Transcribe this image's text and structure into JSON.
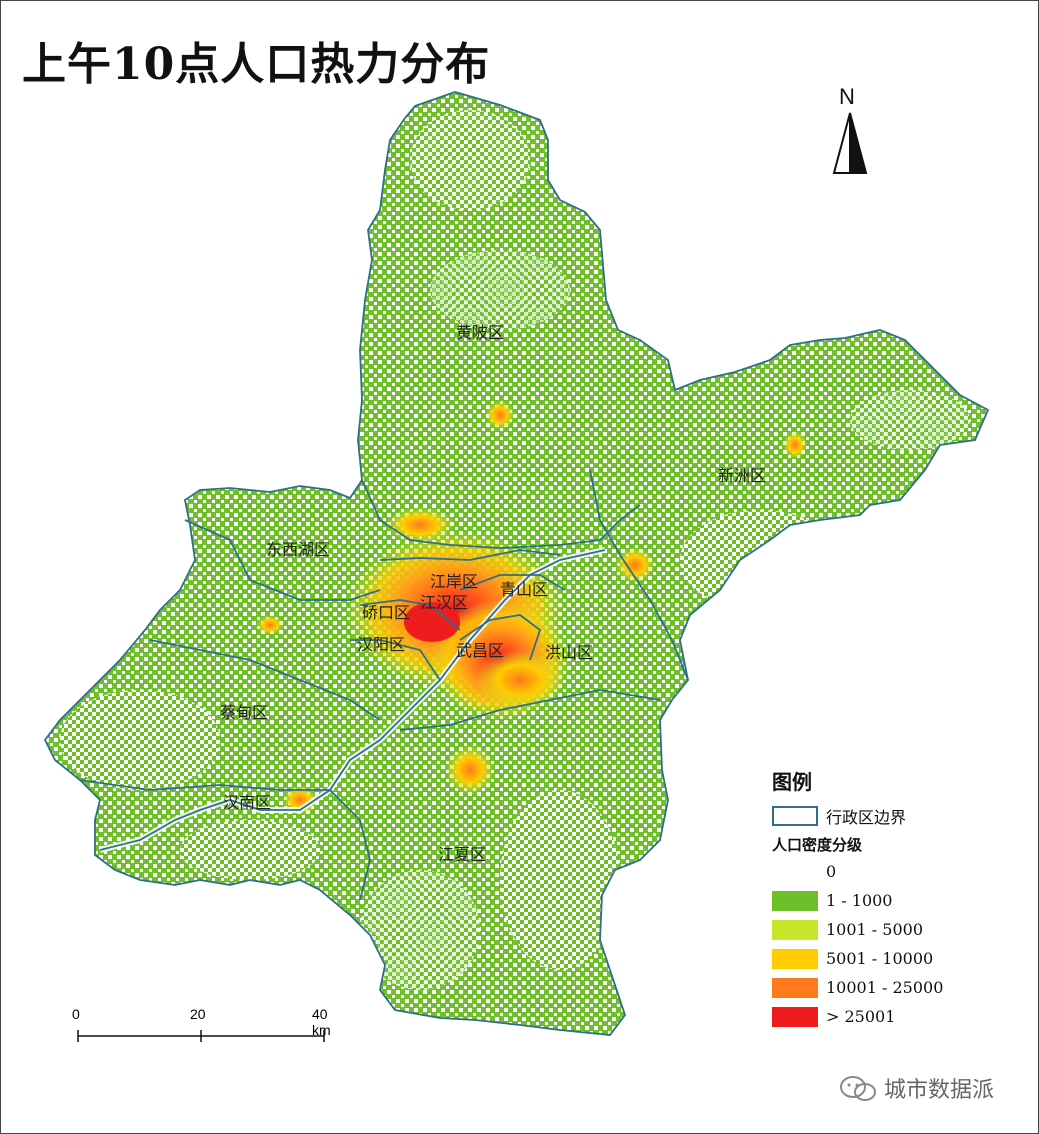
{
  "title": "上午10点人口热力分布",
  "north_label": "N",
  "districts": [
    {
      "name": "黄陂区"
    },
    {
      "name": "新洲区"
    },
    {
      "name": "东西湖区"
    },
    {
      "name": "江岸区"
    },
    {
      "name": "江汉区"
    },
    {
      "name": "青山区"
    },
    {
      "name": "硚口区"
    },
    {
      "name": "汉阳区"
    },
    {
      "name": "武昌区"
    },
    {
      "name": "洪山区"
    },
    {
      "name": "蔡甸区"
    },
    {
      "name": "汉南区"
    },
    {
      "name": "江夏区"
    }
  ],
  "legend": {
    "title": "图例",
    "boundary_label": "行政区边界",
    "density_title": "人口密度分级",
    "classes": [
      {
        "label": "0",
        "color": "#ffffff"
      },
      {
        "label": "1 - 1000",
        "color": "#6fbf2a"
      },
      {
        "label": "1001 - 5000",
        "color": "#c6e62a"
      },
      {
        "label": "5001 - 10000",
        "color": "#ffcc00"
      },
      {
        "label": "10001 - 25000",
        "color": "#ff7a1a"
      },
      {
        "label": "> 25001",
        "color": "#ee1c1c"
      }
    ]
  },
  "scale_bar": {
    "ticks": [
      "0",
      "20",
      "40 km"
    ]
  },
  "watermark": "城市数据派",
  "colors": {
    "boundary": "#2f6e8e",
    "base": "#6fbf2a"
  }
}
